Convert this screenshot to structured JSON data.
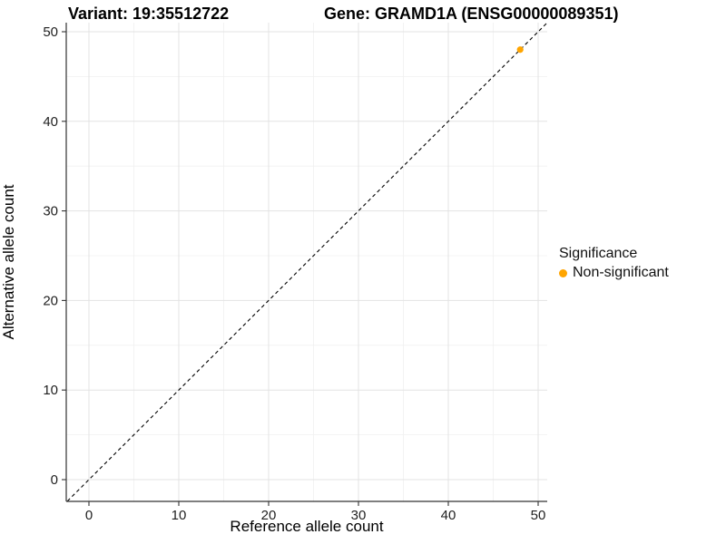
{
  "chart_data": {
    "type": "scatter",
    "titles": {
      "left": "Variant: 19:35512722",
      "right": "Gene: GRAMD1A (ENSG00000089351)"
    },
    "xlabel": "Reference allele count",
    "ylabel": "Alternative allele count",
    "x_ticks": [
      0,
      10,
      20,
      30,
      40,
      50
    ],
    "y_ticks": [
      0,
      10,
      20,
      30,
      40,
      50
    ],
    "xlim": [
      -2.5,
      51
    ],
    "ylim": [
      -2.4,
      51
    ],
    "grid": {
      "major_every": 10,
      "minor_every": 5,
      "major_color": "#E3E3E3",
      "minor_color": "#F0F0F0"
    },
    "identity_line": {
      "equation": "y = x",
      "style": "dashed",
      "color": "#000000"
    },
    "series": [
      {
        "name": "Non-significant",
        "color": "#FFA500",
        "points": [
          {
            "x": 48,
            "y": 48
          }
        ]
      }
    ],
    "legend": {
      "title": "Significance",
      "position": "right",
      "items": [
        {
          "label": "Non-significant",
          "color": "#FFA500",
          "marker": "circle"
        }
      ]
    }
  },
  "styles": {
    "background": "#FFFFFF",
    "axis_line_color": "#333333",
    "tick_label_color": "#1F1F1F"
  }
}
